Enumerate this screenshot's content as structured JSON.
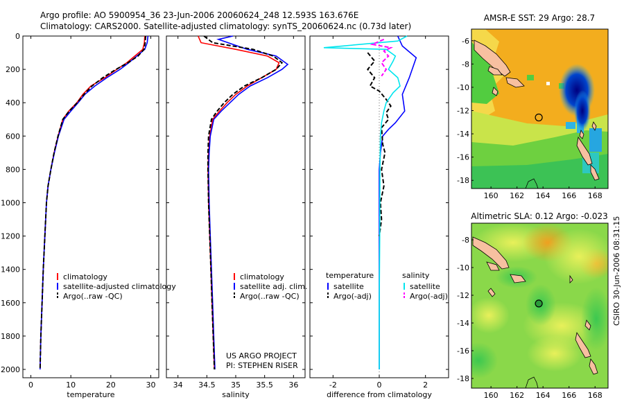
{
  "title_line1": "Argo profile: AO 5900954_36 23-Jun-2006 20060624_248 12.593S 163.676E",
  "title_line2": "Climatology: CARS2000. Satellite-adjusted climatology: synTS_20060624.nc (0.73d later)",
  "credit": [
    "US ARGO PROJECT",
    "PI: STEPHEN RISER"
  ],
  "timestamp": "CSIRO 30-Jun-2006 08:31:15",
  "colors": {
    "red": "#ff0000",
    "blue": "#0000ff",
    "black": "#000000",
    "cyan": "#00e5ee",
    "magenta": "#ff00ff"
  },
  "chart_data": [
    {
      "id": "temperature",
      "type": "line",
      "xlabel": "temperature",
      "xlim": [
        -2,
        32
      ],
      "ylim": [
        0,
        2050
      ],
      "xticks": [
        0,
        10,
        20,
        30
      ],
      "yticks": [
        0,
        200,
        400,
        600,
        800,
        1000,
        1200,
        1400,
        1600,
        1800,
        2000
      ],
      "legend": [
        {
          "label": "climatology",
          "color": "#ff0000",
          "dash": false
        },
        {
          "label": "satellite-adjusted climatology",
          "color": "#0000ff",
          "dash": false
        },
        {
          "label": "Argo(..raw -QC)",
          "color": "#000000",
          "dash": true
        }
      ],
      "series": [
        {
          "name": "climatology",
          "color": "#ff0000",
          "dash": false,
          "points": [
            [
              28.5,
              0
            ],
            [
              28.4,
              40
            ],
            [
              28.0,
              80
            ],
            [
              26.0,
              120
            ],
            [
              24.0,
              160
            ],
            [
              21.5,
              200
            ],
            [
              18.5,
              250
            ],
            [
              15.0,
              300
            ],
            [
              13.0,
              350
            ],
            [
              11.5,
              400
            ],
            [
              9.5,
              450
            ],
            [
              8.0,
              500
            ],
            [
              6.8,
              600
            ],
            [
              5.8,
              700
            ],
            [
              5.0,
              800
            ],
            [
              4.3,
              900
            ],
            [
              3.9,
              1000
            ],
            [
              3.5,
              1200
            ],
            [
              3.1,
              1400
            ],
            [
              2.8,
              1600
            ],
            [
              2.5,
              1800
            ],
            [
              2.3,
              2000
            ]
          ]
        },
        {
          "name": "satellite-adjusted climatology",
          "color": "#0000ff",
          "dash": false,
          "points": [
            [
              29.3,
              0
            ],
            [
              29.1,
              40
            ],
            [
              28.5,
              80
            ],
            [
              26.5,
              120
            ],
            [
              24.5,
              160
            ],
            [
              22.3,
              200
            ],
            [
              19.0,
              250
            ],
            [
              16.0,
              300
            ],
            [
              13.5,
              350
            ],
            [
              11.8,
              400
            ],
            [
              10.0,
              450
            ],
            [
              8.3,
              500
            ],
            [
              6.9,
              600
            ],
            [
              5.9,
              700
            ],
            [
              5.0,
              800
            ],
            [
              4.3,
              900
            ],
            [
              3.9,
              1000
            ],
            [
              3.5,
              1200
            ],
            [
              3.1,
              1400
            ],
            [
              2.8,
              1600
            ],
            [
              2.5,
              1800
            ],
            [
              2.3,
              2000
            ]
          ]
        },
        {
          "name": "Argo(..raw -QC)",
          "color": "#000000",
          "dash": true,
          "points": [
            [
              28.7,
              0
            ],
            [
              28.6,
              40
            ],
            [
              28.3,
              80
            ],
            [
              26.8,
              120
            ],
            [
              24.3,
              160
            ],
            [
              21.3,
              200
            ],
            [
              18.0,
              250
            ],
            [
              15.3,
              300
            ],
            [
              13.3,
              350
            ],
            [
              11.6,
              400
            ],
            [
              9.6,
              450
            ],
            [
              8.0,
              500
            ],
            [
              6.8,
              600
            ],
            [
              5.8,
              700
            ],
            [
              5.0,
              800
            ],
            [
              4.3,
              900
            ],
            [
              3.9,
              1000
            ],
            [
              3.5,
              1200
            ],
            [
              3.1,
              1400
            ],
            [
              2.8,
              1600
            ],
            [
              2.5,
              1800
            ],
            [
              2.3,
              2000
            ]
          ]
        }
      ]
    },
    {
      "id": "salinity",
      "type": "line",
      "xlabel": "salinity",
      "xlim": [
        33.8,
        36.2
      ],
      "ylim": [
        0,
        2050
      ],
      "xticks": [
        34,
        34.5,
        35,
        35.5,
        36
      ],
      "yticks": [
        0,
        200,
        400,
        600,
        800,
        1000,
        1200,
        1400,
        1600,
        1800,
        2000
      ],
      "legend": [
        {
          "label": "climatology",
          "color": "#ff0000",
          "dash": false
        },
        {
          "label": "satellite adj. clim.",
          "color": "#0000ff",
          "dash": false
        },
        {
          "label": "Argo(..raw -QC)",
          "color": "#000000",
          "dash": true
        }
      ],
      "series": [
        {
          "name": "climatology",
          "color": "#ff0000",
          "dash": false,
          "points": [
            [
              34.35,
              0
            ],
            [
              34.4,
              40
            ],
            [
              35.0,
              80
            ],
            [
              35.55,
              120
            ],
            [
              35.75,
              160
            ],
            [
              35.7,
              200
            ],
            [
              35.45,
              250
            ],
            [
              35.2,
              300
            ],
            [
              35.0,
              350
            ],
            [
              34.85,
              400
            ],
            [
              34.72,
              450
            ],
            [
              34.6,
              500
            ],
            [
              34.55,
              600
            ],
            [
              34.53,
              700
            ],
            [
              34.52,
              800
            ],
            [
              34.53,
              1000
            ],
            [
              34.55,
              1200
            ],
            [
              34.57,
              1400
            ],
            [
              34.59,
              1600
            ],
            [
              34.61,
              1800
            ],
            [
              34.63,
              2000
            ]
          ]
        },
        {
          "name": "satellite adj. clim.",
          "color": "#0000ff",
          "dash": false,
          "points": [
            [
              34.95,
              0
            ],
            [
              34.7,
              20
            ],
            [
              35.2,
              80
            ],
            [
              35.7,
              120
            ],
            [
              35.9,
              170
            ],
            [
              35.8,
              200
            ],
            [
              35.55,
              250
            ],
            [
              35.25,
              300
            ],
            [
              35.05,
              350
            ],
            [
              34.9,
              400
            ],
            [
              34.75,
              450
            ],
            [
              34.62,
              500
            ],
            [
              34.56,
              600
            ],
            [
              34.54,
              700
            ],
            [
              34.53,
              800
            ],
            [
              34.54,
              1000
            ],
            [
              34.56,
              1200
            ],
            [
              34.58,
              1400
            ],
            [
              34.6,
              1600
            ],
            [
              34.62,
              1800
            ],
            [
              34.64,
              2000
            ]
          ]
        },
        {
          "name": "Argo(..raw -QC)",
          "color": "#000000",
          "dash": true,
          "points": [
            [
              34.45,
              0
            ],
            [
              34.6,
              40
            ],
            [
              35.3,
              80
            ],
            [
              35.65,
              120
            ],
            [
              35.8,
              160
            ],
            [
              35.7,
              200
            ],
            [
              35.45,
              250
            ],
            [
              35.15,
              300
            ],
            [
              34.95,
              350
            ],
            [
              34.8,
              400
            ],
            [
              34.68,
              450
            ],
            [
              34.58,
              500
            ],
            [
              34.53,
              600
            ],
            [
              34.52,
              700
            ],
            [
              34.52,
              800
            ],
            [
              34.53,
              1000
            ],
            [
              34.55,
              1200
            ],
            [
              34.57,
              1400
            ],
            [
              34.59,
              1600
            ],
            [
              34.61,
              1800
            ],
            [
              34.63,
              2000
            ]
          ]
        }
      ]
    },
    {
      "id": "difference",
      "type": "line",
      "xlabel": "difference from climatology",
      "xlim": [
        -3,
        3
      ],
      "ylim": [
        0,
        2050
      ],
      "xticks": [
        -2,
        0,
        2
      ],
      "yticks": [
        0,
        200,
        400,
        600,
        800,
        1000,
        1200,
        1400,
        1600,
        1800,
        2000
      ],
      "legend_headers": [
        "temperature",
        "salinity"
      ],
      "legend": [
        {
          "label": "satellite",
          "color": "#0000ff",
          "dash": false,
          "col": 0
        },
        {
          "label": "Argo(-adj)",
          "color": "#000000",
          "dash": true,
          "col": 0
        },
        {
          "label": "satellite",
          "color": "#00e5ee",
          "dash": false,
          "col": 1
        },
        {
          "label": "Argo(-adj)",
          "color": "#ff00ff",
          "dash": true,
          "col": 1
        }
      ],
      "series": [
        {
          "name": "temperature satellite",
          "color": "#0000ff",
          "dash": false,
          "points": [
            [
              0.8,
              0
            ],
            [
              1.0,
              60
            ],
            [
              1.6,
              130
            ],
            [
              1.3,
              250
            ],
            [
              1.0,
              350
            ],
            [
              1.1,
              450
            ],
            [
              0.7,
              520
            ],
            [
              0.4,
              560
            ],
            [
              0.15,
              600
            ],
            [
              0.05,
              700
            ],
            [
              0.0,
              800
            ],
            [
              0.0,
              2000
            ]
          ]
        },
        {
          "name": "temperature Argo(-adj)",
          "color": "#000000",
          "dash": true,
          "points": [
            [
              -0.5,
              100
            ],
            [
              -0.2,
              150
            ],
            [
              -0.5,
              200
            ],
            [
              -0.2,
              250
            ],
            [
              -0.4,
              300
            ],
            [
              0.0,
              330
            ],
            [
              0.3,
              380
            ],
            [
              0.5,
              420
            ],
            [
              0.3,
              460
            ],
            [
              0.4,
              500
            ],
            [
              0.1,
              550
            ],
            [
              0.15,
              650
            ],
            [
              0.25,
              700
            ],
            [
              0.1,
              800
            ],
            [
              0.2,
              900
            ],
            [
              0.05,
              1000
            ],
            [
              0.1,
              1100
            ],
            [
              0.0,
              1200
            ]
          ]
        },
        {
          "name": "salinity satellite",
          "color": "#00e5ee",
          "dash": false,
          "points": [
            [
              1.2,
              0
            ],
            [
              0.8,
              30
            ],
            [
              -2.4,
              70
            ],
            [
              0.3,
              80
            ],
            [
              0.7,
              120
            ],
            [
              0.6,
              150
            ],
            [
              0.4,
              200
            ],
            [
              0.8,
              250
            ],
            [
              0.9,
              300
            ],
            [
              0.6,
              340
            ],
            [
              0.3,
              400
            ],
            [
              0.2,
              450
            ],
            [
              0.1,
              520
            ],
            [
              0.05,
              600
            ],
            [
              0.03,
              800
            ],
            [
              0.02,
              1200
            ],
            [
              0.0,
              1600
            ],
            [
              0.0,
              2000
            ]
          ]
        },
        {
          "name": "salinity Argo(-adj)",
          "color": "#ff00ff",
          "dash": true,
          "points": [
            [
              0.2,
              20
            ],
            [
              -0.3,
              50
            ],
            [
              0.5,
              70
            ],
            [
              0.2,
              90
            ],
            [
              0.4,
              120
            ],
            [
              0.1,
              160
            ],
            [
              0.3,
              200
            ],
            [
              0.1,
              240
            ]
          ]
        }
      ]
    },
    {
      "id": "sst_map",
      "type": "heatmap",
      "title": "AMSR-E SST: 29 Argo: 28.7",
      "xlim": [
        158.5,
        169
      ],
      "ylim": [
        -18.7,
        -5
      ],
      "xticks": [
        160,
        162,
        164,
        166,
        168
      ],
      "yticks": [
        -6,
        -8,
        -10,
        -12,
        -14,
        -16,
        -18
      ],
      "argo_position": [
        163.676,
        -12.593
      ]
    },
    {
      "id": "sla_map",
      "type": "heatmap",
      "title": "Altimetric SLA: 0.12 Argo: -0.023",
      "xlim": [
        158.5,
        169
      ],
      "ylim": [
        -18.7,
        -6.8
      ],
      "xticks": [
        160,
        162,
        164,
        166,
        168
      ],
      "yticks": [
        -8,
        -10,
        -12,
        -14,
        -16,
        -18
      ],
      "argo_position": [
        163.676,
        -12.593
      ]
    }
  ]
}
